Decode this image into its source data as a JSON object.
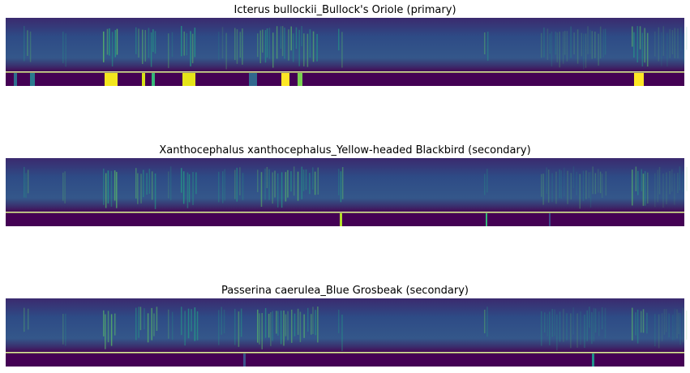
{
  "panels": [
    {
      "title": "Icterus bullockii_Bullock's Oriole (primary)"
    },
    {
      "title": "Xanthocephalus xanthocephalus_Yellow-headed Blackbird (secondary)"
    },
    {
      "title": "Passerina caerulea_Blue Grosbeak (secondary)"
    }
  ]
}
